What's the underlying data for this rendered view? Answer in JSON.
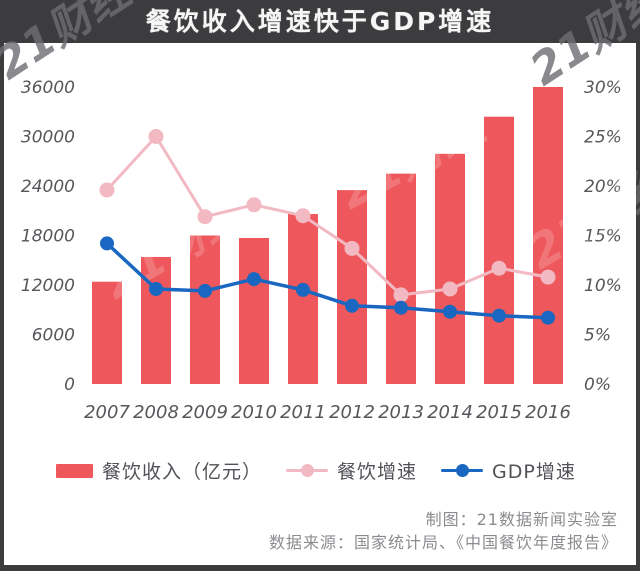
{
  "header": {
    "title": "餐饮收入增速快于GDP增速",
    "watermark": "21财经"
  },
  "chart_data": {
    "type": "bar",
    "subtype": "bar + two lines (dual axis)",
    "title": "餐饮收入增速快于GDP增速",
    "categories": [
      "2007",
      "2008",
      "2009",
      "2010",
      "2011",
      "2012",
      "2013",
      "2014",
      "2015",
      "2016"
    ],
    "series": [
      {
        "name": "餐饮收入（亿元）",
        "type": "bar",
        "axis": "left",
        "color": "#ee585c",
        "values": [
          12400,
          15400,
          18000,
          17700,
          20600,
          23500,
          25500,
          27900,
          32400,
          36000
        ]
      },
      {
        "name": "餐饮增速",
        "type": "line",
        "axis": "right",
        "color": "#f2b9c3",
        "values": [
          19.6,
          25.0,
          16.9,
          18.1,
          17.0,
          13.7,
          9.0,
          9.6,
          11.7,
          10.8
        ]
      },
      {
        "name": "GDP增速",
        "type": "line",
        "axis": "right",
        "color": "#1a67c1",
        "values": [
          14.2,
          9.6,
          9.4,
          10.6,
          9.5,
          7.9,
          7.7,
          7.3,
          6.9,
          6.7
        ]
      }
    ],
    "left_axis": {
      "ticks": [
        0,
        6000,
        12000,
        18000,
        24000,
        30000,
        36000
      ],
      "min": 0,
      "max": 36000,
      "label": ""
    },
    "right_axis": {
      "ticks": [
        "0%",
        "5%",
        "10%",
        "15%",
        "20%",
        "25%",
        "30%"
      ],
      "tick_values": [
        0,
        5,
        10,
        15,
        20,
        25,
        30
      ],
      "min": 0,
      "max": 30,
      "label": ""
    },
    "grid": false,
    "legend_position": "bottom",
    "xlabel": "",
    "ylabel": ""
  },
  "footer": {
    "credit": "制图：21数据新闻实验室",
    "source": "数据来源：国家统计局、《中国餐饮年度报告》"
  },
  "colors": {
    "frame": "#3c3c3f",
    "bar": "#ee585c",
    "pink_line": "#f2b9c3",
    "blue_line": "#1a67c1",
    "axis_text": "#56575b",
    "footer_text": "#8b8c8f",
    "title_text": "#f6f6f6"
  }
}
